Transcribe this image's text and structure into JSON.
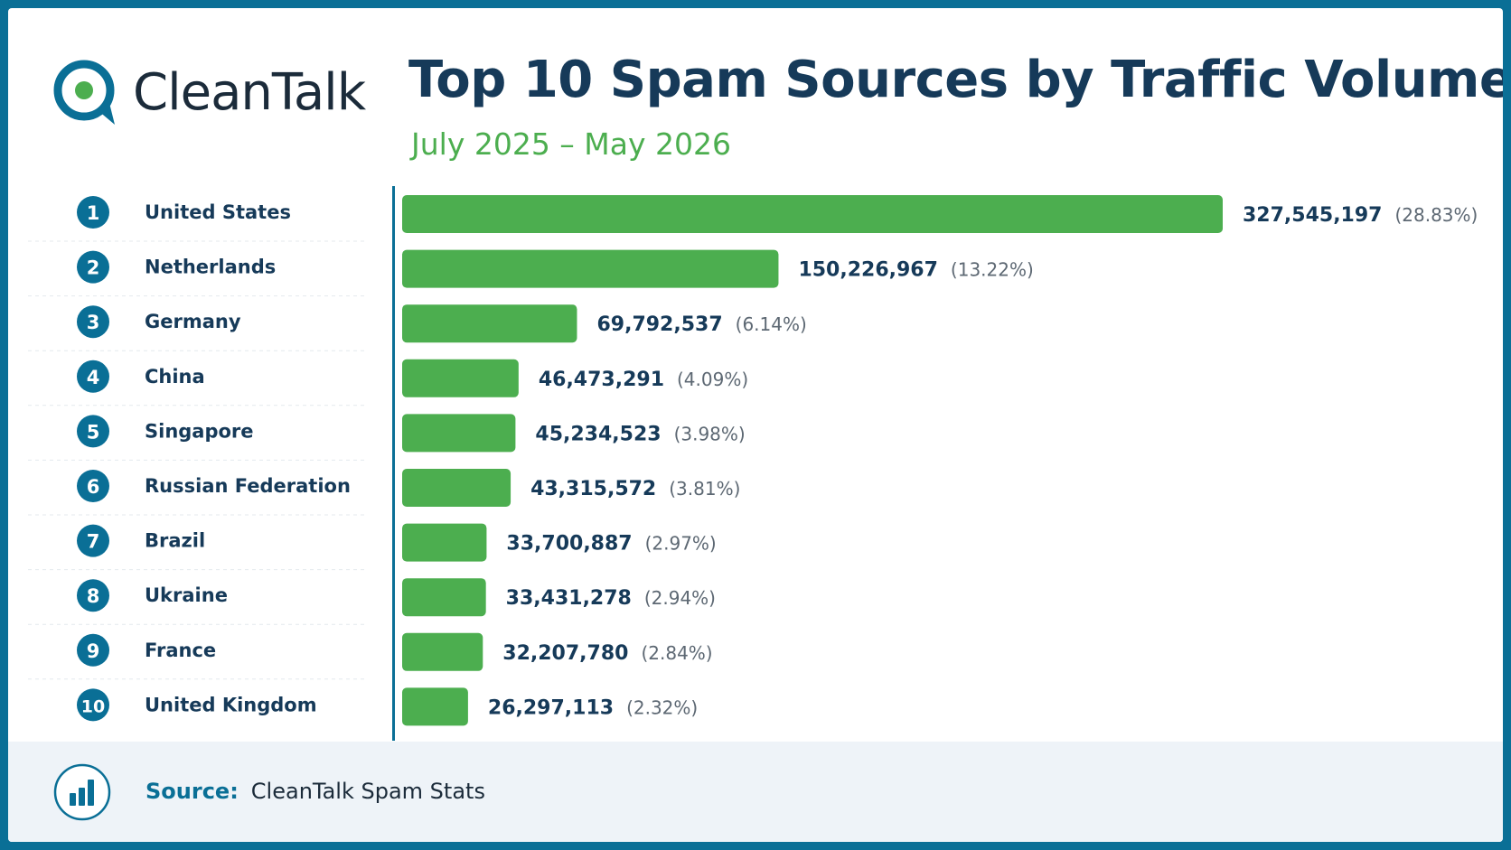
{
  "brand": {
    "name": "CleanTalk",
    "accent": "#4cae4f",
    "primary": "#0a6f96",
    "text_dark": "#163a59"
  },
  "header": {
    "title": "Top 10 Spam Sources by Traffic Volume",
    "subtitle": "July 2025 – May 2026"
  },
  "chart_data": {
    "type": "bar",
    "orientation": "horizontal",
    "title": "Top 10 Spam Sources by Traffic Volume",
    "subtitle": "July 2025 – May 2026",
    "ranks": [
      "1",
      "2",
      "3",
      "4",
      "5",
      "6",
      "7",
      "8",
      "9",
      "10"
    ],
    "categories": [
      "United States",
      "Netherlands",
      "Germany",
      "China",
      "Singapore",
      "Russian Federation",
      "Brazil",
      "Ukraine",
      "France",
      "United Kingdom"
    ],
    "values": [
      327545197,
      150226967,
      69792537,
      46473291,
      45234523,
      43315572,
      33700887,
      33431278,
      32207780,
      26297113
    ],
    "value_labels": [
      "327,545,197",
      "150,226,967",
      "69,792,537",
      "46,473,291",
      "45,234,523",
      "43,315,572",
      "33,700,887",
      "33,431,278",
      "32,207,780",
      "26,297,113"
    ],
    "percent_labels": [
      "(28.83%)",
      "(13.22%)",
      "(6.14%)",
      "(4.09%)",
      "(3.98%)",
      "(3.81%)",
      "(2.97%)",
      "(2.94%)",
      "(2.84%)",
      "(2.32%)"
    ],
    "bar_color": "#4cae4f",
    "grid": false,
    "legend": "none"
  },
  "footer": {
    "source_label": "Source:",
    "source_value": "CleanTalk Spam Stats",
    "icon": "bar-chart-icon"
  }
}
